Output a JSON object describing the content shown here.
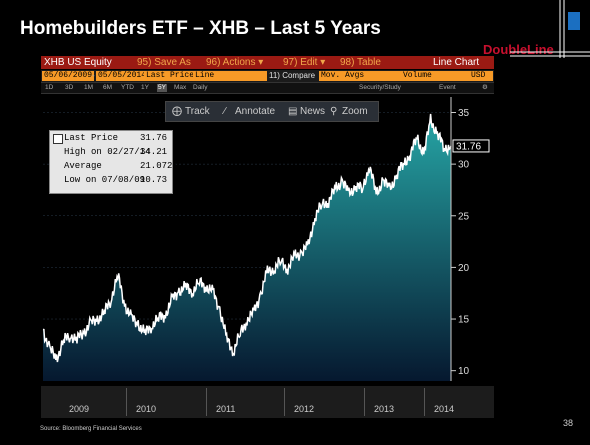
{
  "slide": {
    "title": "Homebuilders ETF – XHB – Last 5 Years",
    "logo": "DoubleLine",
    "source": "Source: Bloomberg Financial Services",
    "page_number": "38"
  },
  "toolbar1": {
    "security": "XHB US Equity",
    "save_as": "95) Save As",
    "actions": "96) Actions ▾",
    "edit": "97) Edit ▾",
    "table": "98) Table",
    "chart_type": "Line Chart"
  },
  "toolbar2": {
    "start_date": "05/06/2009",
    "end_date": "05/05/2014",
    "field": "Last Price",
    "style": "Line",
    "compare_prefix": "11) Compare",
    "compare": "Mov. Avgs",
    "volume": "Volume",
    "currency": "USD"
  },
  "toolbar3": {
    "ranges": [
      "1D",
      "3D",
      "1M",
      "6M",
      "YTD",
      "1Y",
      "5Y",
      "Max"
    ],
    "selected_range": "5Y",
    "period": "Daily",
    "security_study": "Security/Study",
    "event": "Event"
  },
  "track_bar": {
    "track": "Track",
    "annotate": "Annotate",
    "news": "News",
    "zoom": "Zoom"
  },
  "legend": {
    "rows": [
      {
        "label": "Last Price",
        "value": "31.76"
      },
      {
        "label": "High on 02/27/14",
        "value": "34.21"
      },
      {
        "label": "Average",
        "value": "21.0727"
      },
      {
        "label": "Low on 07/08/09",
        "value": "10.73"
      }
    ]
  },
  "chart_data": {
    "type": "area",
    "title": "",
    "series": [
      {
        "name": "",
        "x": [
          "2009-05",
          "2009-06",
          "2009-07",
          "2009-08",
          "2009-09",
          "2009-10",
          "2009-11",
          "2009-12",
          "2010-01",
          "2010-02",
          "2010-03",
          "2010-04",
          "2010-05",
          "2010-06",
          "2010-07",
          "2010-08",
          "2010-09",
          "2010-10",
          "2010-11",
          "2010-12",
          "2011-01",
          "2011-02",
          "2011-03",
          "2011-04",
          "2011-05",
          "2011-06",
          "2011-07",
          "2011-08",
          "2011-09",
          "2011-10",
          "2011-11",
          "2011-12",
          "2012-01",
          "2012-02",
          "2012-03",
          "2012-04",
          "2012-05",
          "2012-06",
          "2012-07",
          "2012-08",
          "2012-09",
          "2012-10",
          "2012-11",
          "2012-12",
          "2013-01",
          "2013-02",
          "2013-03",
          "2013-04",
          "2013-05",
          "2013-06",
          "2013-07",
          "2013-08",
          "2013-09",
          "2013-10",
          "2013-11",
          "2013-12",
          "2014-01",
          "2014-02",
          "2014-03",
          "2014-04",
          "2014-05"
        ],
        "values": [
          14.0,
          12.0,
          11.2,
          12.8,
          13.5,
          13.0,
          13.8,
          14.5,
          15.0,
          15.5,
          17.0,
          19.2,
          16.5,
          15.0,
          14.6,
          13.5,
          14.5,
          15.0,
          15.5,
          16.8,
          17.8,
          18.0,
          17.8,
          18.5,
          18.2,
          17.5,
          16.0,
          13.0,
          12.0,
          13.5,
          15.0,
          15.5,
          17.5,
          19.5,
          20.0,
          20.5,
          20.0,
          21.0,
          21.5,
          22.0,
          25.0,
          26.0,
          26.5,
          27.5,
          28.5,
          27.0,
          28.0,
          27.5,
          30.0,
          27.0,
          28.5,
          27.5,
          29.0,
          30.0,
          31.0,
          32.5,
          31.0,
          34.21,
          33.0,
          31.5,
          31.76
        ]
      }
    ],
    "y_axis": {
      "ticks": [
        10,
        15,
        20,
        25,
        30,
        35
      ],
      "min": 9,
      "max": 36.5,
      "side": "right"
    },
    "x_axis": {
      "labels": [
        "2009",
        "2010",
        "2011",
        "2012",
        "2013",
        "2014"
      ]
    },
    "last_value_label": "31.76",
    "colors": {
      "fill_top": "#26a6a6",
      "fill_bottom": "#06182f",
      "line": "#ffffff",
      "background": "#000000"
    }
  }
}
